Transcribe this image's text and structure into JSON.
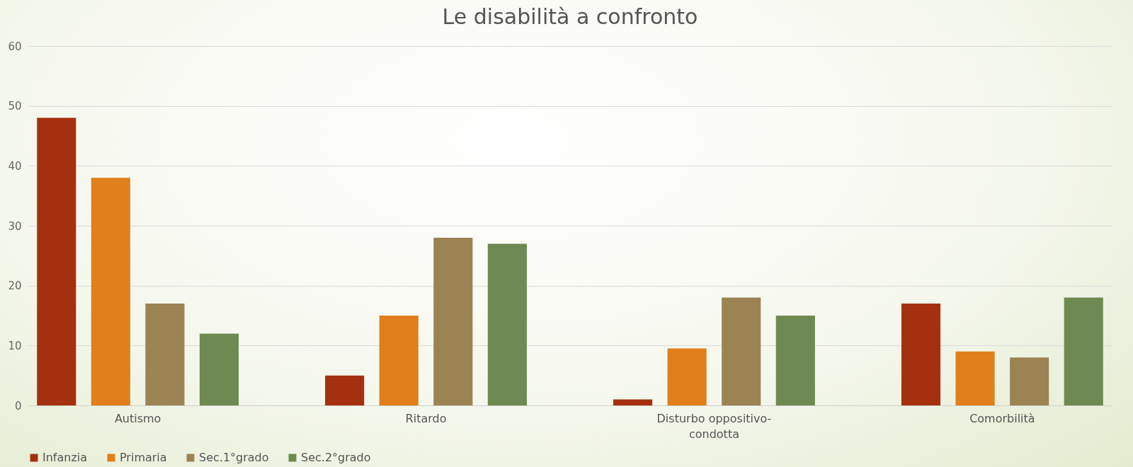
{
  "chart_data": {
    "type": "bar",
    "title": "Le disabilità a confronto",
    "categories": [
      "Autismo",
      "Ritardo",
      "Disturbo oppositivo-condotta",
      "Comorbilità"
    ],
    "series": [
      {
        "name": "Infanzia",
        "color": "#a5300f",
        "values": [
          48,
          5,
          1,
          17
        ]
      },
      {
        "name": "Primaria",
        "color": "#e07f1b",
        "values": [
          38,
          15,
          9.5,
          9
        ]
      },
      {
        "name": "Sec.1°grado",
        "color": "#9c8354",
        "values": [
          17,
          28,
          18,
          8
        ]
      },
      {
        "name": "Sec.2°grado",
        "color": "#6e8a52",
        "values": [
          12,
          27,
          15,
          18
        ]
      }
    ],
    "ylim": [
      0,
      60
    ],
    "yticks": [
      0,
      10,
      20,
      30,
      40,
      50,
      60
    ],
    "grid": "y",
    "legend": "bottom"
  }
}
